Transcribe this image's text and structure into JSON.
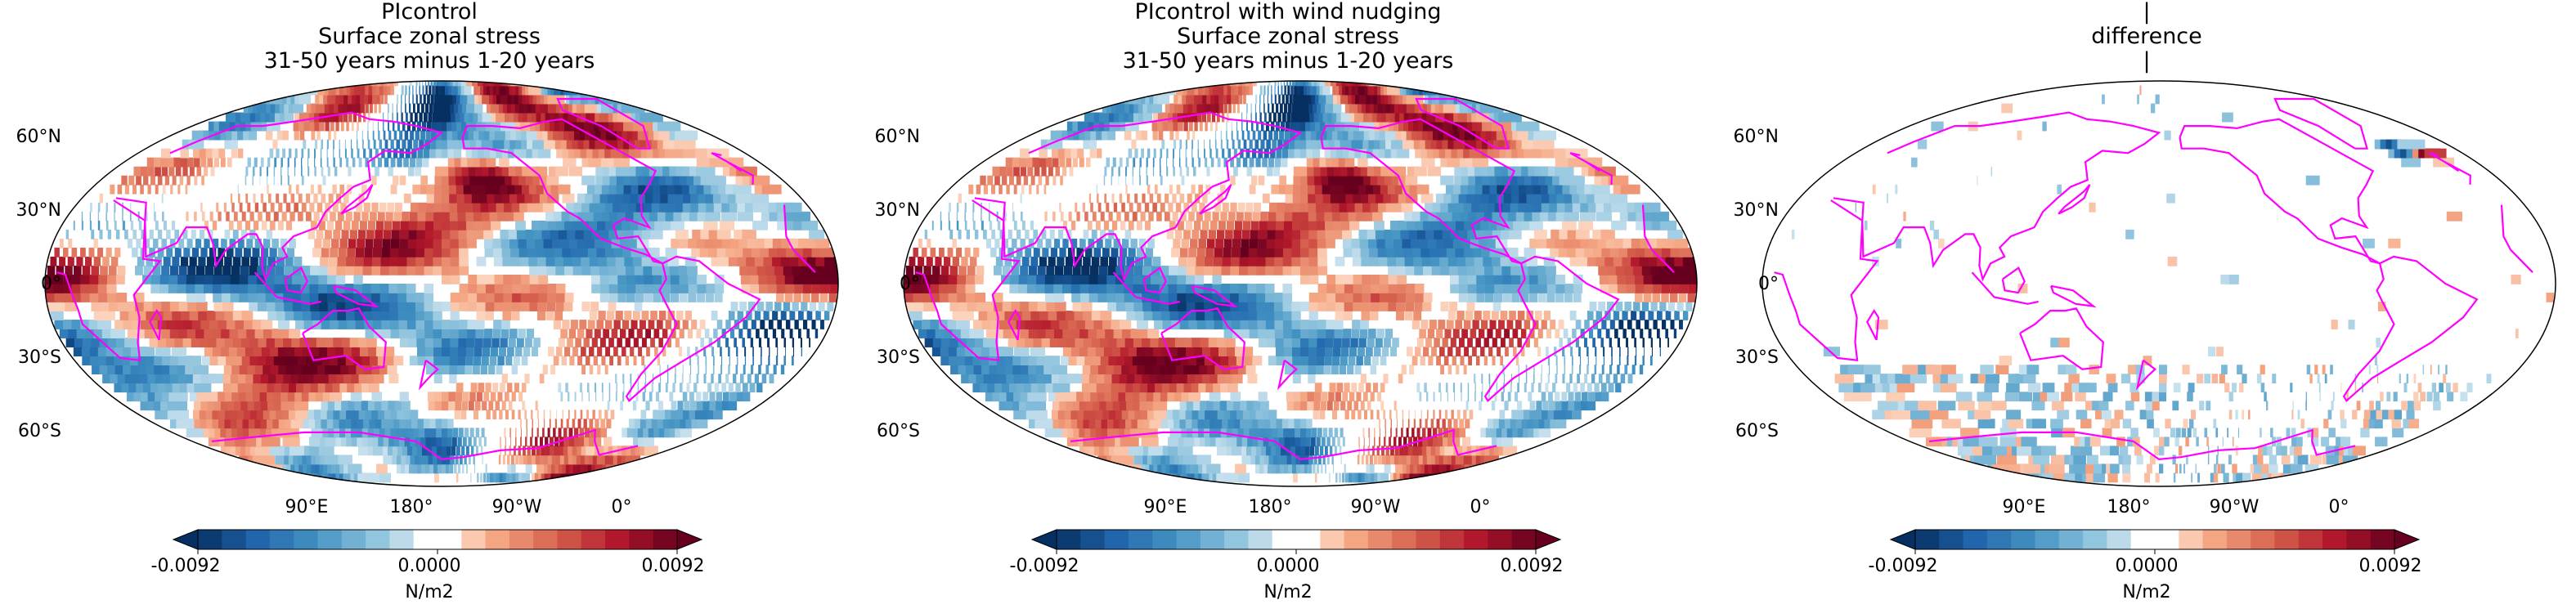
{
  "panels": [
    {
      "title_lines": [
        "PIcontrol",
        "Surface zonal stress",
        "31-50 years minus 1-20 years"
      ],
      "field": "a"
    },
    {
      "title_lines": [
        "PIcontrol with wind nudging",
        "Surface zonal stress",
        "31-50 years minus 1-20 years"
      ],
      "field": "a"
    },
    {
      "title_lines": [
        "|",
        "difference",
        "|"
      ],
      "field": "diff"
    }
  ],
  "map": {
    "projection": "robinson",
    "central_longitude": 180,
    "lat_labels": [
      "60°N",
      "30°N",
      "0°",
      "30°S",
      "60°S"
    ],
    "lon_labels": [
      "90°E",
      "180°",
      "90°W",
      "0°"
    ],
    "coastline_color": "#ff00ff"
  },
  "colorbar": {
    "cmap": "RdBu_r",
    "min": -0.0092,
    "max": 0.0092,
    "tick_labels": [
      "-0.0092",
      "0.0000",
      "0.0092"
    ],
    "unit": "N/m2",
    "extend": "both"
  },
  "chart_data": {
    "type": "heatmap",
    "variable": "Surface zonal stress",
    "unit": "N/m2",
    "vmin": -0.0092,
    "vmax": 0.0092,
    "panels": [
      {
        "name": "PIcontrol",
        "period": "31-50 years minus 1-20 years"
      },
      {
        "name": "PIcontrol with wind nudging",
        "period": "31-50 years minus 1-20 years"
      },
      {
        "name": "difference"
      }
    ]
  }
}
